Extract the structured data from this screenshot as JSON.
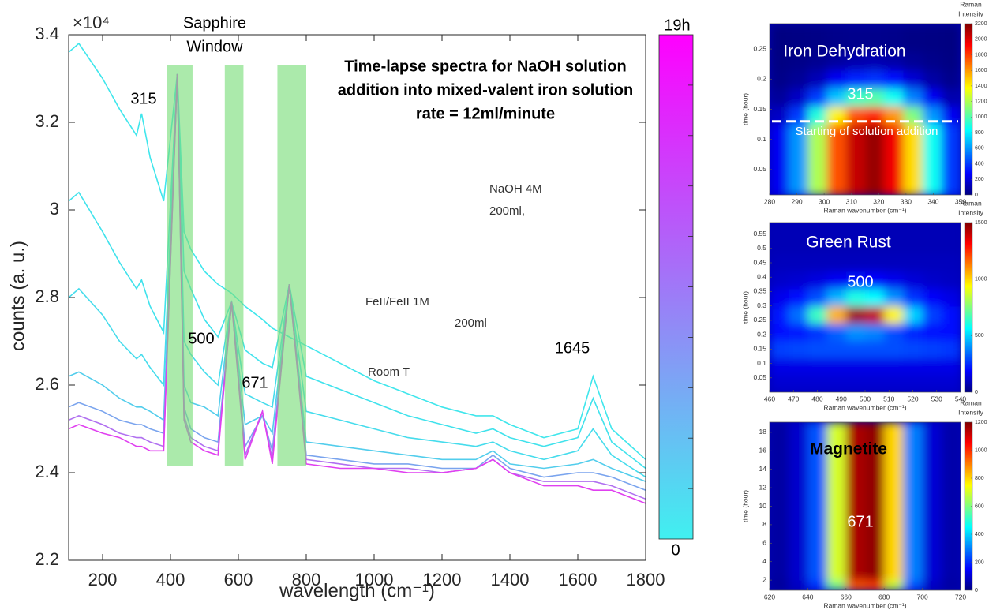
{
  "chart_data": [
    {
      "type": "line",
      "title": [
        "Time-lapse spectra for NaOH solution",
        "addition into mixed-valent iron solution",
        "rate = 12ml/minute"
      ],
      "window_label": [
        "Sapphire",
        "Window"
      ],
      "multiplier": "×10⁴",
      "ylabel": "counts (a. u.)",
      "xlabel": "wavelength (cm⁻¹)",
      "xlim": [
        100,
        1800
      ],
      "xticks": [
        200,
        400,
        600,
        800,
        1000,
        1200,
        1400,
        1600,
        1800
      ],
      "ylim": [
        2.2,
        3.4
      ],
      "yticks": [
        2.2,
        2.4,
        2.6,
        2.8,
        3,
        3.2,
        3.4
      ],
      "x": [
        100,
        130,
        200,
        250,
        300,
        315,
        340,
        380,
        420,
        440,
        460,
        500,
        540,
        580,
        620,
        671,
        700,
        750,
        800,
        900,
        1000,
        1100,
        1200,
        1300,
        1350,
        1400,
        1500,
        1600,
        1645,
        1700,
        1800
      ],
      "series": [
        {
          "color": "#40e6ec",
          "values": [
            3.36,
            3.38,
            3.3,
            3.23,
            3.17,
            3.22,
            3.12,
            3.02,
            3.31,
            2.95,
            2.91,
            2.86,
            2.83,
            2.81,
            2.78,
            2.75,
            2.73,
            2.71,
            2.69,
            2.65,
            2.61,
            2.58,
            2.55,
            2.53,
            2.53,
            2.51,
            2.48,
            2.5,
            2.62,
            2.5,
            2.43
          ]
        },
        {
          "color": "#40e2ec",
          "values": [
            3.02,
            3.04,
            2.95,
            2.88,
            2.82,
            2.84,
            2.78,
            2.72,
            3.31,
            2.86,
            2.82,
            2.75,
            2.71,
            2.79,
            2.68,
            2.65,
            2.64,
            2.83,
            2.62,
            2.59,
            2.56,
            2.53,
            2.51,
            2.49,
            2.5,
            2.48,
            2.46,
            2.48,
            2.57,
            2.47,
            2.41
          ]
        },
        {
          "color": "#46dcec",
          "values": [
            2.8,
            2.82,
            2.76,
            2.7,
            2.66,
            2.67,
            2.64,
            2.6,
            3.31,
            2.7,
            2.67,
            2.63,
            2.6,
            2.79,
            2.58,
            2.56,
            2.55,
            2.83,
            2.54,
            2.52,
            2.5,
            2.48,
            2.47,
            2.46,
            2.47,
            2.45,
            2.43,
            2.45,
            2.5,
            2.44,
            2.39
          ]
        },
        {
          "color": "#52cdec",
          "values": [
            2.62,
            2.63,
            2.6,
            2.57,
            2.55,
            2.55,
            2.54,
            2.52,
            3.31,
            2.6,
            2.56,
            2.55,
            2.53,
            2.79,
            2.51,
            2.53,
            2.49,
            2.83,
            2.47,
            2.46,
            2.45,
            2.44,
            2.43,
            2.43,
            2.45,
            2.42,
            2.41,
            2.42,
            2.43,
            2.41,
            2.38
          ]
        },
        {
          "color": "#7aa4ee",
          "values": [
            2.55,
            2.56,
            2.54,
            2.52,
            2.51,
            2.51,
            2.5,
            2.49,
            3.31,
            2.55,
            2.5,
            2.48,
            2.47,
            2.79,
            2.46,
            2.53,
            2.45,
            2.83,
            2.44,
            2.43,
            2.42,
            2.42,
            2.41,
            2.41,
            2.44,
            2.41,
            2.39,
            2.4,
            2.4,
            2.39,
            2.36
          ]
        },
        {
          "color": "#b070f0",
          "values": [
            2.52,
            2.53,
            2.51,
            2.49,
            2.48,
            2.48,
            2.47,
            2.46,
            3.31,
            2.53,
            2.48,
            2.46,
            2.45,
            2.79,
            2.44,
            2.54,
            2.43,
            2.83,
            2.43,
            2.42,
            2.41,
            2.41,
            2.4,
            2.41,
            2.43,
            2.4,
            2.38,
            2.38,
            2.38,
            2.37,
            2.34
          ]
        },
        {
          "color": "#e040f0",
          "values": [
            2.5,
            2.51,
            2.49,
            2.48,
            2.46,
            2.46,
            2.45,
            2.45,
            3.31,
            2.52,
            2.47,
            2.45,
            2.44,
            2.79,
            2.43,
            2.54,
            2.42,
            2.83,
            2.42,
            2.41,
            2.41,
            2.4,
            2.4,
            2.41,
            2.43,
            2.4,
            2.37,
            2.37,
            2.36,
            2.36,
            2.33
          ]
        }
      ],
      "bands": {
        "x": [
          [
            390,
            465
          ],
          [
            560,
            615
          ],
          [
            715,
            800
          ]
        ],
        "ylim": [
          2.415,
          3.33
        ],
        "color": "#77dd77"
      },
      "annotations": [
        "315",
        "500",
        "671",
        "1645"
      ],
      "colorbar": {
        "colors": [
          "#ff00ff",
          "#40f0f0"
        ],
        "labels": [
          "19h",
          "0"
        ]
      },
      "inset": {
        "reagent": [
          "NaOH 4M",
          "200ml,"
        ],
        "solution": "FeII/FeII 1M",
        "volume": "200ml",
        "condition": "Room T"
      }
    },
    {
      "type": "heatmap",
      "title": "Iron Dehydration",
      "title_color": "#ffffff",
      "peak_label": "315",
      "xlabel": "Raman wavenumber (cm⁻¹)",
      "ylabel": "time (hour)",
      "xlim": [
        280,
        350
      ],
      "xticks": [
        280,
        290,
        300,
        310,
        320,
        330,
        340,
        350
      ],
      "ylim": [
        0.008,
        0.292
      ],
      "yticks": [
        0.05,
        0.1,
        0.15,
        0.2,
        0.25
      ],
      "hline": 0.13,
      "hline_label": "Starting of solution addition",
      "colorbar_title": [
        "Raman",
        "Intensity"
      ],
      "clim": [
        0,
        2200
      ],
      "colorbar_ticks": [
        0,
        200,
        400,
        600,
        800,
        1000,
        1200,
        1400,
        1600,
        1800,
        2000,
        2200
      ],
      "x": [
        283.5,
        290.5,
        297.5,
        304.5,
        311.5,
        318.5,
        325.5,
        332.5,
        339.5,
        346.5
      ],
      "y": [
        0.02,
        0.05,
        0.08,
        0.11,
        0.14,
        0.17,
        0.2,
        0.23,
        0.26,
        0.29
      ],
      "z": [
        [
          250,
          600,
          1200,
          1750,
          2050,
          2150,
          1950,
          1450,
          850,
          400
        ],
        [
          250,
          600,
          1200,
          1750,
          2050,
          2150,
          1950,
          1450,
          850,
          400
        ],
        [
          250,
          600,
          1200,
          1750,
          2050,
          2150,
          1950,
          1450,
          850,
          400
        ],
        [
          250,
          600,
          1200,
          1750,
          2050,
          2150,
          1950,
          1450,
          850,
          400
        ],
        [
          150,
          400,
          900,
          1400,
          1750,
          1850,
          1600,
          1100,
          600,
          250
        ],
        [
          60,
          150,
          400,
          700,
          950,
          1000,
          850,
          550,
          250,
          100
        ],
        [
          20,
          50,
          120,
          250,
          350,
          380,
          300,
          180,
          80,
          30
        ],
        [
          10,
          20,
          40,
          70,
          100,
          110,
          90,
          50,
          25,
          10
        ],
        [
          5,
          10,
          15,
          25,
          30,
          30,
          25,
          15,
          10,
          5
        ],
        [
          5,
          10,
          15,
          25,
          30,
          30,
          25,
          15,
          10,
          5
        ]
      ]
    },
    {
      "type": "heatmap",
      "title": "Green Rust",
      "title_color": "#ffffff",
      "peak_label": "500",
      "xlabel": "Raman wavenumber (cm⁻¹)",
      "ylabel": "time (hour)",
      "xlim": [
        460,
        540
      ],
      "xticks": [
        460,
        470,
        480,
        490,
        500,
        510,
        520,
        530,
        540
      ],
      "ylim": [
        0,
        0.59
      ],
      "yticks": [
        0.05,
        0.1,
        0.15,
        0.2,
        0.25,
        0.3,
        0.35,
        0.4,
        0.45,
        0.5,
        0.55
      ],
      "colorbar_title": [
        "Raman",
        "Intensity"
      ],
      "clim": [
        0,
        1500
      ],
      "colorbar_ticks": [
        0,
        500,
        1000,
        1500
      ],
      "x": [
        464,
        472,
        480,
        488,
        496,
        504,
        512,
        520,
        528,
        536
      ],
      "y": [
        0.03,
        0.09,
        0.15,
        0.21,
        0.27,
        0.33,
        0.39,
        0.45,
        0.51,
        0.57
      ],
      "z": [
        [
          120,
          120,
          120,
          120,
          120,
          120,
          120,
          120,
          120,
          120
        ],
        [
          150,
          150,
          150,
          150,
          150,
          150,
          150,
          150,
          150,
          150
        ],
        [
          280,
          290,
          300,
          300,
          300,
          300,
          300,
          290,
          280,
          270
        ],
        [
          200,
          220,
          260,
          330,
          400,
          380,
          300,
          240,
          210,
          200
        ],
        [
          220,
          350,
          650,
          1050,
          1450,
          1400,
          950,
          500,
          280,
          200
        ],
        [
          160,
          200,
          300,
          450,
          600,
          560,
          400,
          260,
          180,
          150
        ],
        [
          110,
          120,
          140,
          170,
          200,
          190,
          160,
          130,
          110,
          100
        ],
        [
          90,
          90,
          90,
          90,
          90,
          90,
          90,
          90,
          90,
          90
        ],
        [
          80,
          80,
          80,
          80,
          80,
          80,
          80,
          80,
          80,
          80
        ],
        [
          80,
          80,
          80,
          80,
          80,
          80,
          80,
          80,
          80,
          80
        ]
      ]
    },
    {
      "type": "heatmap",
      "title": "Magnetite",
      "title_color": "#000000",
      "peak_label": "671",
      "xlabel": "Raman wavenumber (cm⁻¹)",
      "ylabel": "time (hour)",
      "xlim": [
        620,
        720
      ],
      "xticks": [
        620,
        640,
        660,
        680,
        700,
        720
      ],
      "ylim": [
        0.9,
        19.1
      ],
      "yticks": [
        2,
        4,
        6,
        8,
        10,
        12,
        14,
        16,
        18
      ],
      "colorbar_title": [
        "Raman",
        "Intensity"
      ],
      "clim": [
        0,
        1200
      ],
      "colorbar_ticks": [
        0,
        200,
        400,
        600,
        800,
        1000,
        1200
      ],
      "x": [
        625,
        635,
        645,
        655,
        665,
        675,
        685,
        695,
        705,
        715
      ],
      "y": [
        1,
        3,
        5,
        7,
        9,
        11,
        13,
        15,
        17,
        19
      ],
      "z": [
        [
          30,
          80,
          210,
          590,
          950,
          980,
          680,
          250,
          80,
          40
        ],
        [
          40,
          90,
          250,
          700,
          1150,
          1180,
          800,
          300,
          100,
          50
        ],
        [
          40,
          90,
          250,
          700,
          1150,
          1180,
          800,
          300,
          100,
          50
        ],
        [
          40,
          90,
          250,
          700,
          1150,
          1180,
          800,
          300,
          100,
          50
        ],
        [
          40,
          90,
          250,
          700,
          1150,
          1180,
          800,
          300,
          100,
          50
        ],
        [
          40,
          90,
          250,
          700,
          1150,
          1180,
          800,
          300,
          100,
          50
        ],
        [
          40,
          90,
          250,
          700,
          1150,
          1180,
          800,
          300,
          100,
          50
        ],
        [
          40,
          90,
          250,
          700,
          1150,
          1180,
          800,
          300,
          100,
          50
        ],
        [
          40,
          90,
          250,
          700,
          1150,
          1180,
          800,
          300,
          100,
          50
        ],
        [
          40,
          90,
          250,
          700,
          1150,
          1180,
          800,
          300,
          100,
          50
        ]
      ]
    }
  ]
}
